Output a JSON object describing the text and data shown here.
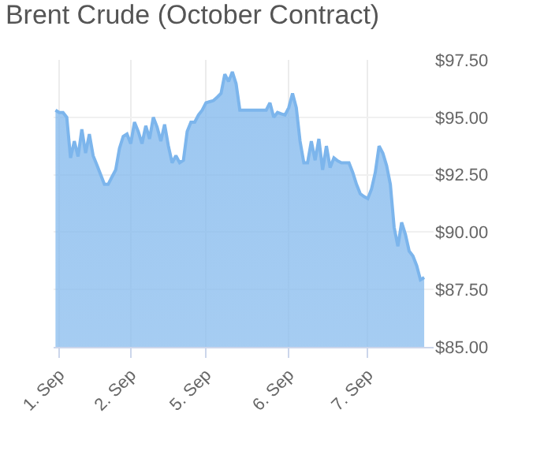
{
  "chart_data": {
    "type": "area",
    "title": "Brent Crude (October Contract)",
    "categories": [
      null,
      "1. Sep",
      null,
      null,
      null,
      null,
      null,
      null,
      null,
      null,
      null,
      null,
      null,
      null,
      null,
      null,
      null,
      null,
      null,
      null,
      "2. Sep",
      null,
      null,
      null,
      null,
      null,
      null,
      null,
      null,
      null,
      null,
      null,
      null,
      null,
      null,
      null,
      null,
      null,
      null,
      null,
      "5. Sep",
      null,
      null,
      null,
      null,
      null,
      null,
      null,
      null,
      null,
      null,
      null,
      null,
      null,
      null,
      null,
      null,
      null,
      null,
      null,
      null,
      null,
      "6. Sep",
      null,
      null,
      null,
      null,
      null,
      null,
      null,
      null,
      null,
      null,
      null,
      null,
      null,
      null,
      null,
      null,
      null,
      null,
      null,
      null,
      "7. Sep",
      null,
      null,
      null,
      null,
      null,
      null,
      null,
      null,
      null,
      null,
      null,
      null,
      null,
      null,
      null
    ],
    "series": [
      {
        "color": "#7cb5ec",
        "values": [
          95.31,
          95.21,
          95.21,
          95.0,
          93.23,
          93.96,
          93.29,
          94.48,
          93.44,
          94.27,
          93.33,
          92.92,
          92.5,
          92.08,
          92.08,
          92.4,
          92.71,
          93.65,
          94.17,
          94.27,
          93.85,
          94.79,
          94.38,
          93.85,
          94.63,
          94.06,
          95.0,
          94.58,
          93.96,
          94.69,
          93.75,
          93.02,
          93.33,
          93.02,
          93.13,
          94.38,
          94.79,
          94.79,
          95.1,
          95.31,
          95.63,
          95.68,
          95.73,
          95.88,
          96.04,
          96.88,
          96.56,
          96.98,
          96.46,
          95.31,
          95.31,
          95.31,
          95.31,
          95.31,
          95.31,
          95.31,
          95.31,
          95.63,
          95.0,
          95.21,
          95.15,
          95.1,
          95.42,
          96.04,
          95.42,
          93.96,
          93.02,
          93.02,
          93.96,
          93.13,
          94.06,
          92.71,
          93.75,
          92.81,
          93.23,
          93.1,
          93.02,
          93.02,
          93.02,
          92.6,
          92.08,
          91.67,
          91.55,
          91.46,
          91.88,
          92.6,
          93.75,
          93.44,
          92.9,
          92.08,
          90.21,
          89.38,
          90.42,
          89.9,
          89.17,
          88.96,
          88.54,
          87.92,
          88.02
        ]
      }
    ],
    "ylim": [
      85,
      97.5
    ],
    "yticks": [
      {
        "value": 85,
        "label": "$85.00"
      },
      {
        "value": 87.5,
        "label": "$87.50"
      },
      {
        "value": 90,
        "label": "$90.00"
      },
      {
        "value": 92.5,
        "label": "$92.50"
      },
      {
        "value": 95,
        "label": "$95.00"
      },
      {
        "value": 97.5,
        "label": "$97.50"
      }
    ],
    "grid": true
  }
}
